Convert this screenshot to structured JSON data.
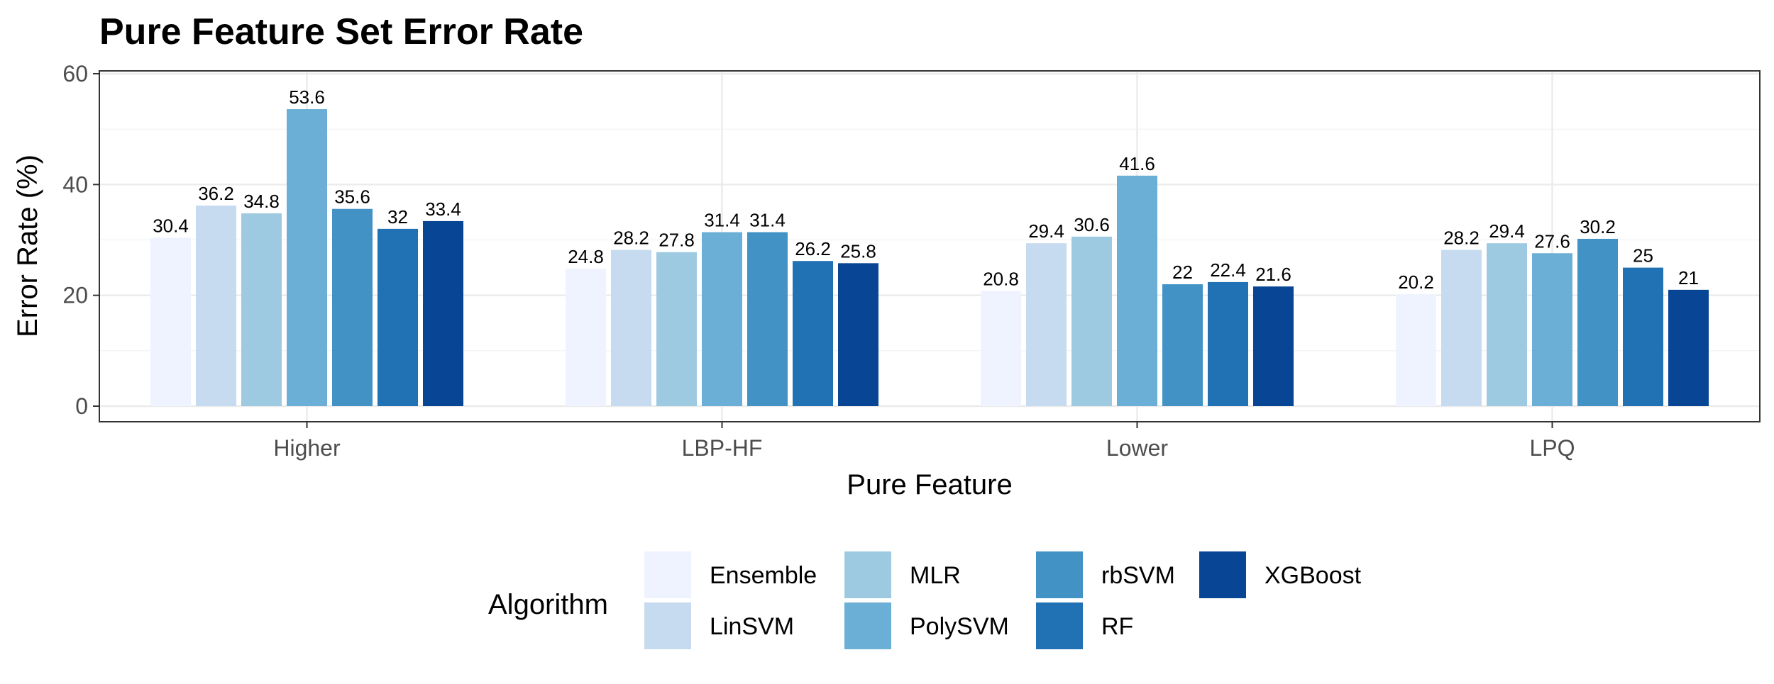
{
  "chart_data": {
    "type": "bar",
    "title": "Pure Feature Set Error Rate",
    "xlabel": "Pure Feature",
    "ylabel": "Error Rate (%)",
    "categories": [
      "Higher",
      "LBP-HF",
      "Lower",
      "LPQ"
    ],
    "ylim": [
      0,
      60
    ],
    "yticks": [
      "0",
      "20",
      "40",
      "60"
    ],
    "grid": true,
    "legend": {
      "title": "Algorithm",
      "position": "bottom"
    },
    "series": [
      {
        "name": "Ensemble",
        "color": "#eff3ff",
        "values": [
          30.4,
          24.8,
          20.8,
          20.2
        ],
        "labels": [
          "30.4",
          "24.8",
          "20.8",
          "20.2"
        ]
      },
      {
        "name": "LinSVM",
        "color": "#c6dbef",
        "values": [
          36.2,
          28.2,
          29.4,
          28.2
        ],
        "labels": [
          "36.2",
          "28.2",
          "29.4",
          "28.2"
        ]
      },
      {
        "name": "MLR",
        "color": "#9ecae1",
        "values": [
          34.8,
          27.8,
          30.6,
          29.4
        ],
        "labels": [
          "34.8",
          "27.8",
          "30.6",
          "29.4"
        ]
      },
      {
        "name": "PolySVM",
        "color": "#6baed6",
        "values": [
          53.6,
          31.4,
          41.6,
          27.6
        ],
        "labels": [
          "53.6",
          "31.4",
          "41.6",
          "27.6"
        ]
      },
      {
        "name": "rbSVM",
        "color": "#4292c6",
        "values": [
          35.6,
          31.4,
          22,
          30.2
        ],
        "labels": [
          "35.6",
          "31.4",
          "22",
          "30.2"
        ]
      },
      {
        "name": "RF",
        "color": "#2171b5",
        "values": [
          32,
          26.2,
          22.4,
          25
        ],
        "labels": [
          "32",
          "26.2",
          "22.4",
          "25"
        ]
      },
      {
        "name": "XGBoost",
        "color": "#084594",
        "values": [
          33.4,
          25.8,
          21.6,
          21
        ],
        "labels": [
          "33.4",
          "25.8",
          "21.6",
          "21"
        ]
      }
    ]
  }
}
